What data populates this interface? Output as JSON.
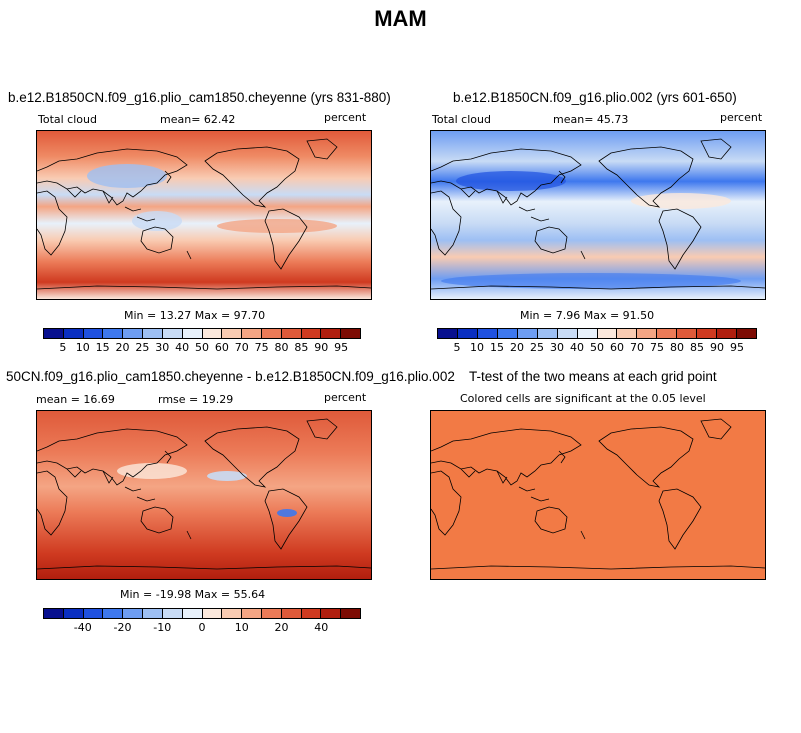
{
  "figure": {
    "title": "MAM"
  },
  "panels": {
    "p1": {
      "title": "b.e12.B1850CN.f09_g16.plio_cam1850.cheyenne (yrs 831-880)",
      "left": "Total cloud",
      "center": "mean=  62.42",
      "right": "percent",
      "minmax": "Min =  13.27 Max =  97.70"
    },
    "p2": {
      "title": "b.e12.B1850CN.f09_g16.plio.002 (yrs 601-650)",
      "left": "Total cloud",
      "center": "mean=  45.73",
      "right": "percent",
      "minmax": "Min =   7.96 Max =  91.50"
    },
    "p3": {
      "title": "50CN.f09_g16.plio_cam1850.cheyenne - b.e12.B1850CN.f09_g16.plio.002",
      "left": "mean =  16.69",
      "center": "rmse =  19.29",
      "right": "percent",
      "minmax": "Min = -19.98 Max =  55.64"
    },
    "p4": {
      "title": "T-test of the two means at each grid point",
      "center": "Colored cells are significant at the 0.05 level"
    }
  },
  "colorbar_abs": {
    "colors": [
      "#08108f",
      "#0a2fc2",
      "#1f51e0",
      "#3e78ee",
      "#6e9df2",
      "#9dbff3",
      "#c8dbf5",
      "#e8f1fb",
      "#fbe8dc",
      "#f9cbb2",
      "#f4a584",
      "#ec7b58",
      "#df5a3a",
      "#cf3a20",
      "#b01e0e",
      "#7d0c04"
    ],
    "labels": [
      "5",
      "10",
      "15",
      "20",
      "25",
      "30",
      "40",
      "50",
      "60",
      "70",
      "75",
      "80",
      "85",
      "90",
      "95"
    ]
  },
  "colorbar_diff": {
    "colors": [
      "#08108f",
      "#0a2fc2",
      "#1f51e0",
      "#3e78ee",
      "#6e9df2",
      "#9dbff3",
      "#c8dbf5",
      "#e8f1fb",
      "#fbe8dc",
      "#f9cbb2",
      "#f4a584",
      "#ec7b58",
      "#df5a3a",
      "#cf3a20",
      "#b01e0e",
      "#7d0c04"
    ],
    "labels": [
      "-40",
      "-20",
      "-10",
      "0",
      "10",
      "20",
      "40"
    ]
  },
  "ttest_fill": "#f27a45"
}
